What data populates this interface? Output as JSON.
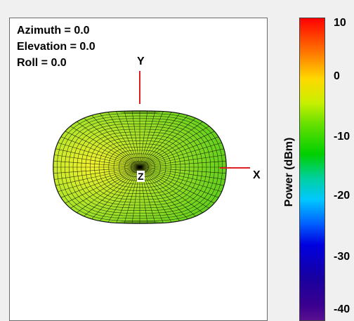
{
  "view": {
    "azimuth": "Azimuth = 0.0",
    "elevation": "Elevation = 0.0",
    "roll": "Roll = 0.0"
  },
  "axes": {
    "x": "X",
    "y": "Y",
    "z": "Z"
  },
  "colorbar": {
    "title": "Power  (dBm)",
    "ticks": [
      "10",
      "0",
      "-10",
      "-20",
      "-30",
      "-40"
    ],
    "colormap": "jet"
  },
  "colors": {
    "axis_line": "#e02020",
    "mesh_line": "#000000",
    "surface_center": "#f2f02a",
    "surface_edge": "#5cd01c"
  }
}
